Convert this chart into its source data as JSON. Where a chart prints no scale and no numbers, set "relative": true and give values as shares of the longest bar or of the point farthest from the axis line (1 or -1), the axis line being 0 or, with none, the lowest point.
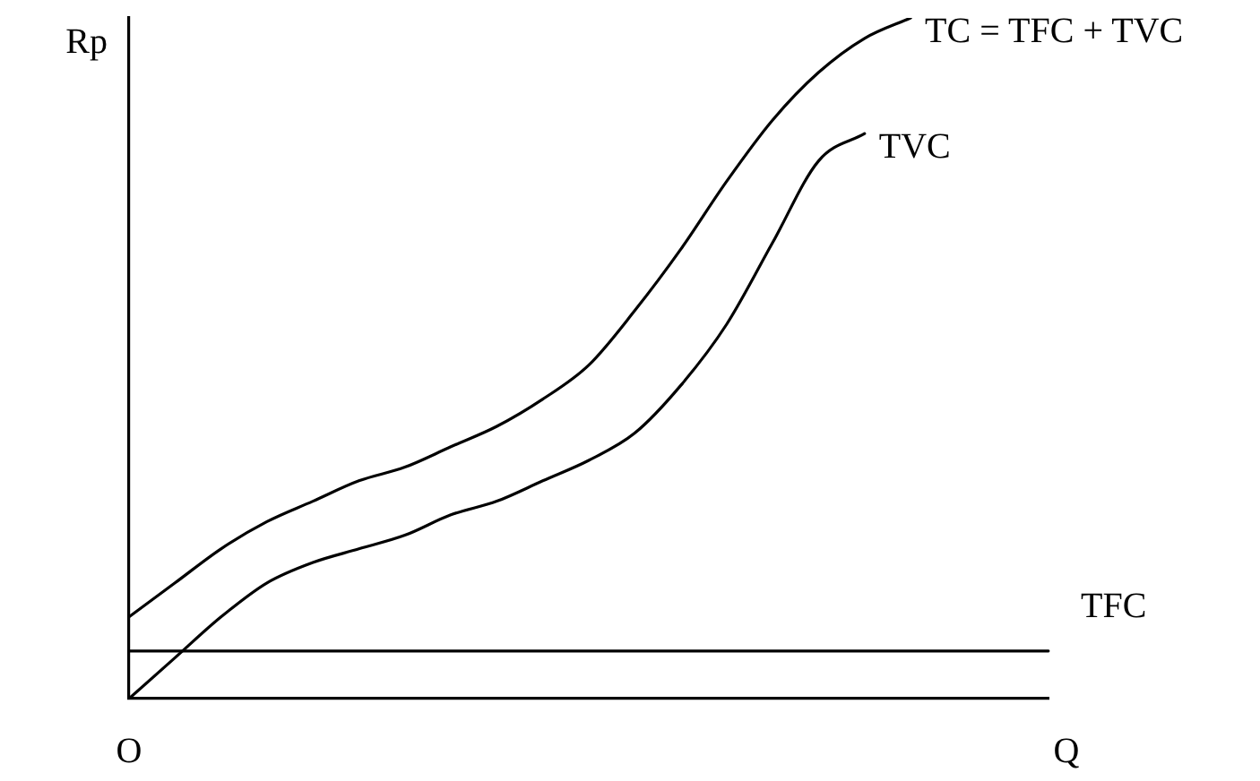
{
  "chart_data": {
    "type": "line",
    "relative": true,
    "xlabel": "Q",
    "ylabel": "Rp",
    "annotations": [
      "O"
    ],
    "categories": [
      null,
      null,
      null,
      null,
      null,
      null,
      null,
      null,
      null,
      null,
      null,
      null,
      null,
      null,
      null,
      null,
      null,
      null,
      null,
      null,
      null
    ],
    "grid": false,
    "legend": false,
    "marker": "none",
    "line_style": "solid",
    "series": [
      {
        "name": "TC = TFC + TVC",
        "color": "#000000",
        "values": [
          0.12,
          0.17,
          0.22,
          0.26,
          0.29,
          0.32,
          0.34,
          0.37,
          0.4,
          0.44,
          0.49,
          0.57,
          0.66,
          0.76,
          0.85,
          0.92,
          0.97,
          1,
          null,
          null,
          null
        ]
      },
      {
        "name": "TVC",
        "color": "#000000",
        "values": [
          0,
          0.06,
          0.12,
          0.17,
          0.2,
          0.22,
          0.24,
          0.27,
          0.29,
          0.32,
          0.35,
          0.39,
          0.46,
          0.55,
          0.67,
          0.79,
          0.83,
          null,
          null,
          null,
          null
        ]
      },
      {
        "name": "TFC",
        "color": "#000000",
        "values": [
          0.07,
          0.07,
          0.07,
          0.07,
          0.07,
          0.07,
          0.07,
          0.07,
          0.07,
          0.07,
          0.07,
          0.07,
          0.07,
          0.07,
          0.07,
          0.07,
          0.07,
          0.07,
          0.07,
          0.07,
          0.07
        ]
      }
    ]
  }
}
